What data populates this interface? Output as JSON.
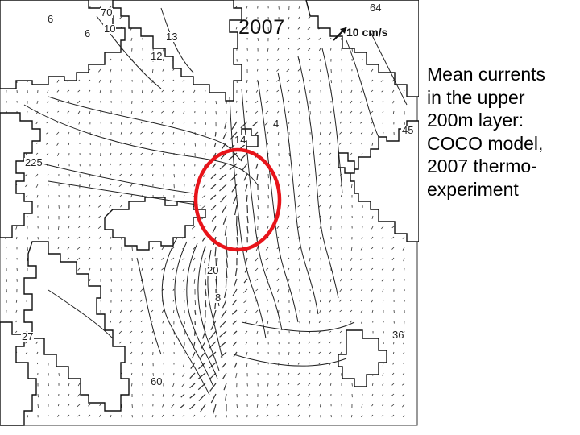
{
  "map": {
    "year": "2007",
    "scale_label": "10 cm/s",
    "caption_lines": [
      "Mean currents",
      "in the upper",
      "200m layer:",
      "COCO model,",
      "2007 thermo-",
      "experiment"
    ],
    "contour_labels": [
      "6",
      "70",
      "10",
      "6",
      "12",
      "13",
      "64",
      "45",
      "225",
      "20",
      "8",
      "27",
      "60",
      "36",
      "14",
      "4"
    ],
    "highlight_color": "#e8141a"
  }
}
